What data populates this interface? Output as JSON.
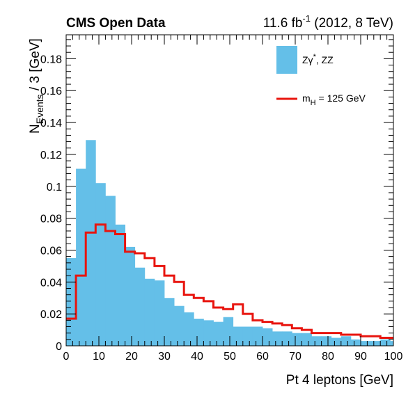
{
  "header": {
    "experiment": "CMS Open Data",
    "lumi_value": "11.6 fb",
    "lumi_exp": "-1",
    "lumi_rest": " (2012, 8 TeV)"
  },
  "colors": {
    "background_fill": "#64bfe8",
    "signal_line": "#e8140e",
    "axis": "#000000"
  },
  "chart_data": {
    "type": "bar",
    "title": "",
    "xlabel": "Pt 4 leptons [GeV]",
    "ylabel": {
      "main": "N",
      "sub": "Events",
      "rest": " / 3 [GeV]"
    },
    "xlim": [
      0,
      100
    ],
    "ylim": [
      0,
      0.195
    ],
    "xticks": [
      0,
      10,
      20,
      30,
      40,
      50,
      60,
      70,
      80,
      90,
      100
    ],
    "yticks": [
      0,
      0.02,
      0.04,
      0.06,
      0.08,
      0.1,
      0.12,
      0.14,
      0.16,
      0.18
    ],
    "grid": false,
    "bin_edges": [
      0,
      3,
      6,
      9,
      12,
      15,
      18,
      21,
      24,
      27,
      30,
      33,
      36,
      39,
      42,
      45,
      48,
      51,
      54,
      57,
      60,
      63,
      66,
      69,
      72,
      75,
      78,
      81,
      84,
      87,
      90,
      93,
      96,
      99,
      100
    ],
    "series": [
      {
        "name": "Zγ*, ZZ",
        "style": "filled",
        "values": [
          0.055,
          0.111,
          0.129,
          0.102,
          0.094,
          0.076,
          0.062,
          0.049,
          0.042,
          0.041,
          0.03,
          0.025,
          0.021,
          0.017,
          0.016,
          0.015,
          0.018,
          0.012,
          0.012,
          0.012,
          0.011,
          0.009,
          0.009,
          0.008,
          0.008,
          0.006,
          0.006,
          0.005,
          0.006,
          0.004,
          0.003,
          0.003,
          0.004,
          0.003
        ]
      },
      {
        "name": "mH = 125 GeV",
        "style": "step",
        "values": [
          0.017,
          0.044,
          0.071,
          0.076,
          0.072,
          0.07,
          0.059,
          0.058,
          0.055,
          0.05,
          0.044,
          0.04,
          0.032,
          0.03,
          0.028,
          0.024,
          0.023,
          0.026,
          0.02,
          0.016,
          0.015,
          0.014,
          0.013,
          0.011,
          0.01,
          0.008,
          0.008,
          0.008,
          0.007,
          0.007,
          0.006,
          0.006,
          0.005,
          0.005
        ]
      }
    ],
    "legend": {
      "position": "top-right",
      "entry1": {
        "main": "Zγ",
        "sup": "*",
        "rest": ", ZZ"
      },
      "entry2": {
        "main": "m",
        "sub": "H",
        "rest": " = 125 GeV"
      }
    }
  }
}
